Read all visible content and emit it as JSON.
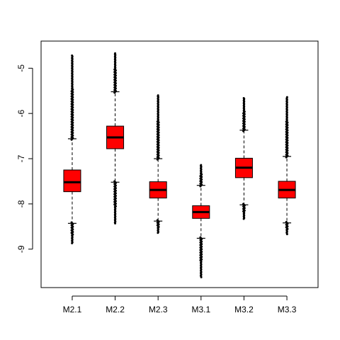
{
  "chart_data": {
    "type": "boxplot",
    "title": "",
    "xlabel": "",
    "ylabel": "",
    "ylim": [
      -9.85,
      -4.4
    ],
    "y_ticks": [
      -5,
      -6,
      -7,
      -8,
      -9
    ],
    "y_tick_labels": [
      "-5",
      "-6",
      "-7",
      "-8",
      "-9"
    ],
    "categories": [
      "M2.1",
      "M2.2",
      "M2.3",
      "M3.1",
      "M3.2",
      "M3.3"
    ],
    "box_color": "#ff0000",
    "boxes": [
      {
        "name": "M2.1",
        "min": -8.43,
        "q1": -7.73,
        "median": -7.52,
        "q3": -7.25,
        "max": -6.56,
        "outlier_low": -8.87,
        "outlier_high": -4.72
      },
      {
        "name": "M2.2",
        "min": -7.52,
        "q1": -6.78,
        "median": -6.53,
        "q3": -6.28,
        "max": -5.52,
        "outlier_low": -8.43,
        "outlier_high": -4.67
      },
      {
        "name": "M2.3",
        "min": -8.38,
        "q1": -7.87,
        "median": -7.69,
        "q3": -7.51,
        "max": -7.0,
        "outlier_low": -8.64,
        "outlier_high": -5.6
      },
      {
        "name": "M3.1",
        "min": -8.76,
        "q1": -8.32,
        "median": -8.18,
        "q3": -8.04,
        "max": -7.59,
        "outlier_low": -9.62,
        "outlier_high": -7.14
      },
      {
        "name": "M3.2",
        "min": -8.02,
        "q1": -7.42,
        "median": -7.2,
        "q3": -6.99,
        "max": -6.37,
        "outlier_low": -8.33,
        "outlier_high": -5.66
      },
      {
        "name": "M3.3",
        "min": -8.42,
        "q1": -7.87,
        "median": -7.69,
        "q3": -7.5,
        "max": -6.95,
        "outlier_low": -8.67,
        "outlier_high": -5.64
      }
    ]
  }
}
